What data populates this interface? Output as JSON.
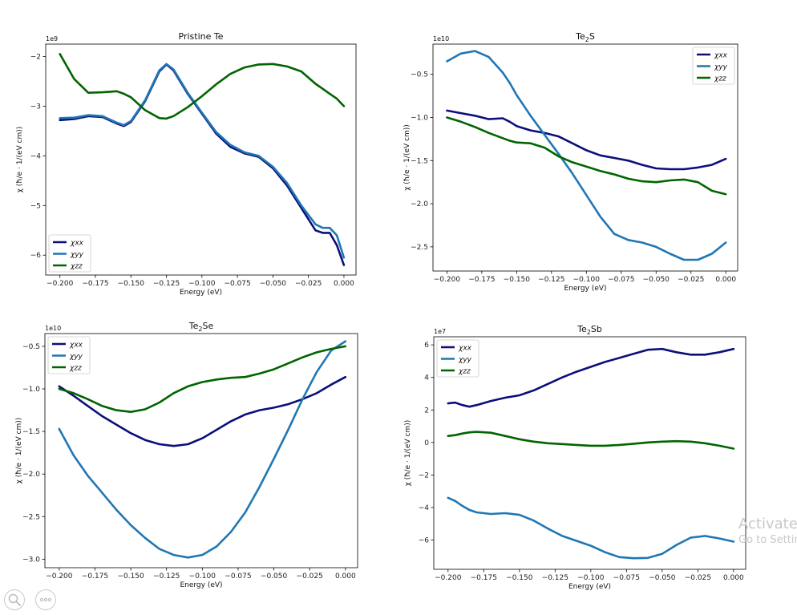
{
  "chart_data": [
    {
      "type": "line",
      "title": "Pristine Te",
      "title_sub": "",
      "title_suffix": "",
      "multiplier": "1e9",
      "xlabel": "Energy (eV)",
      "ylabel": "χ (ħ/e · 1/(eV cm))",
      "xlim": [
        -0.21,
        0.0085
      ],
      "ylim": [
        -6.4,
        -1.75
      ],
      "xticks": [
        -0.2,
        -0.175,
        -0.15,
        -0.125,
        -0.1,
        -0.075,
        -0.05,
        -0.025,
        0.0
      ],
      "xtick_labels": [
        "−0.200",
        "−0.175",
        "−0.150",
        "−0.125",
        "−0.100",
        "−0.075",
        "−0.050",
        "−0.025",
        "0.000"
      ],
      "yticks": [
        -6,
        -5,
        -4,
        -3,
        -2
      ],
      "ytick_labels": [
        "−6",
        "−5",
        "−4",
        "−3",
        "−2"
      ],
      "legend_loc": "lower-left",
      "x": [
        -0.2,
        -0.19,
        -0.18,
        -0.17,
        -0.16,
        -0.155,
        -0.15,
        -0.14,
        -0.13,
        -0.125,
        -0.12,
        -0.11,
        -0.1,
        -0.09,
        -0.08,
        -0.07,
        -0.06,
        -0.05,
        -0.04,
        -0.03,
        -0.02,
        -0.015,
        -0.01,
        -0.005,
        0.0
      ],
      "series": [
        {
          "name": "xx",
          "color": "#0b0f7a",
          "values": [
            -3.28,
            -3.26,
            -3.2,
            -3.22,
            -3.35,
            -3.4,
            -3.32,
            -2.9,
            -2.3,
            -2.16,
            -2.28,
            -2.75,
            -3.15,
            -3.55,
            -3.82,
            -3.95,
            -4.02,
            -4.25,
            -4.6,
            -5.05,
            -5.5,
            -5.55,
            -5.55,
            -5.8,
            -6.2
          ]
        },
        {
          "name": "yy",
          "color": "#1f77b4",
          "values": [
            -3.24,
            -3.23,
            -3.18,
            -3.2,
            -3.33,
            -3.38,
            -3.3,
            -2.88,
            -2.28,
            -2.15,
            -2.26,
            -2.73,
            -3.13,
            -3.52,
            -3.78,
            -3.93,
            -4.0,
            -4.22,
            -4.55,
            -5.0,
            -5.38,
            -5.45,
            -5.45,
            -5.6,
            -6.05
          ]
        },
        {
          "name": "zz",
          "color": "#006400",
          "values": [
            -1.95,
            -2.45,
            -2.73,
            -2.72,
            -2.7,
            -2.75,
            -2.82,
            -3.08,
            -3.24,
            -3.25,
            -3.2,
            -3.02,
            -2.8,
            -2.56,
            -2.35,
            -2.22,
            -2.16,
            -2.15,
            -2.2,
            -2.3,
            -2.55,
            -2.65,
            -2.75,
            -2.85,
            -3.0
          ]
        }
      ]
    },
    {
      "type": "line",
      "title": "Te",
      "title_sub": "2",
      "title_suffix": "S",
      "multiplier": "1e10",
      "xlabel": "Energy (eV)",
      "ylabel": "χ (ħ/e · 1/(eV cm))",
      "xlim": [
        -0.21,
        0.0085
      ],
      "ylim": [
        -2.78,
        -0.15
      ],
      "xticks": [
        -0.2,
        -0.175,
        -0.15,
        -0.125,
        -0.1,
        -0.075,
        -0.05,
        -0.025,
        0.0
      ],
      "xtick_labels": [
        "−0.200",
        "−0.175",
        "−0.150",
        "−0.125",
        "−0.100",
        "−0.075",
        "−0.050",
        "−0.025",
        "0.000"
      ],
      "yticks": [
        -2.5,
        -2.0,
        -1.5,
        -1.0,
        -0.5
      ],
      "ytick_labels": [
        "−2.5",
        "−2.0",
        "−1.5",
        "−1.0",
        "−0.5"
      ],
      "legend_loc": "top-right",
      "x": [
        -0.2,
        -0.19,
        -0.18,
        -0.17,
        -0.16,
        -0.155,
        -0.15,
        -0.14,
        -0.13,
        -0.12,
        -0.11,
        -0.1,
        -0.09,
        -0.08,
        -0.07,
        -0.06,
        -0.05,
        -0.04,
        -0.03,
        -0.02,
        -0.01,
        0.0
      ],
      "series": [
        {
          "name": "xx",
          "color": "#0b0f7a",
          "values": [
            -0.92,
            -0.95,
            -0.98,
            -1.02,
            -1.01,
            -1.05,
            -1.1,
            -1.15,
            -1.18,
            -1.22,
            -1.3,
            -1.38,
            -1.44,
            -1.47,
            -1.5,
            -1.55,
            -1.59,
            -1.6,
            -1.6,
            -1.58,
            -1.55,
            -1.48
          ]
        },
        {
          "name": "yy",
          "color": "#1f77b4",
          "values": [
            -0.35,
            -0.26,
            -0.23,
            -0.3,
            -0.48,
            -0.6,
            -0.74,
            -0.98,
            -1.2,
            -1.42,
            -1.65,
            -1.9,
            -2.15,
            -2.35,
            -2.42,
            -2.45,
            -2.5,
            -2.58,
            -2.65,
            -2.65,
            -2.58,
            -2.45
          ]
        },
        {
          "name": "zz",
          "color": "#006400",
          "values": [
            -1.0,
            -1.05,
            -1.11,
            -1.18,
            -1.24,
            -1.27,
            -1.29,
            -1.3,
            -1.35,
            -1.45,
            -1.52,
            -1.57,
            -1.62,
            -1.66,
            -1.71,
            -1.74,
            -1.75,
            -1.73,
            -1.72,
            -1.75,
            -1.85,
            -1.89
          ]
        }
      ]
    },
    {
      "type": "line",
      "title": "Te",
      "title_sub": "2",
      "title_suffix": "Se",
      "multiplier": "1e10",
      "xlabel": "Energy (eV)",
      "ylabel": "χ (ħ/e · 1/(eV cm))",
      "xlim": [
        -0.21,
        0.0085
      ],
      "ylim": [
        -3.1,
        -0.35
      ],
      "xticks": [
        -0.2,
        -0.175,
        -0.15,
        -0.125,
        -0.1,
        -0.075,
        -0.05,
        -0.025,
        0.0
      ],
      "xtick_labels": [
        "−0.200",
        "−0.175",
        "−0.150",
        "−0.125",
        "−0.100",
        "−0.075",
        "−0.050",
        "−0.025",
        "0.000"
      ],
      "yticks": [
        -3.0,
        -2.5,
        -2.0,
        -1.5,
        -1.0,
        -0.5
      ],
      "ytick_labels": [
        "−3.0",
        "−2.5",
        "−2.0",
        "−1.5",
        "−1.0",
        "−0.5"
      ],
      "legend_loc": "top-left",
      "x": [
        -0.2,
        -0.19,
        -0.18,
        -0.17,
        -0.16,
        -0.15,
        -0.14,
        -0.13,
        -0.12,
        -0.11,
        -0.1,
        -0.09,
        -0.08,
        -0.07,
        -0.06,
        -0.05,
        -0.04,
        -0.03,
        -0.02,
        -0.01,
        0.0
      ],
      "series": [
        {
          "name": "xx",
          "color": "#0b0f7a",
          "values": [
            -0.97,
            -1.08,
            -1.2,
            -1.32,
            -1.42,
            -1.52,
            -1.6,
            -1.65,
            -1.67,
            -1.65,
            -1.58,
            -1.48,
            -1.38,
            -1.3,
            -1.25,
            -1.22,
            -1.18,
            -1.12,
            -1.05,
            -0.95,
            -0.86
          ]
        },
        {
          "name": "yy",
          "color": "#1f77b4",
          "values": [
            -1.47,
            -1.78,
            -2.02,
            -2.22,
            -2.42,
            -2.6,
            -2.75,
            -2.88,
            -2.95,
            -2.98,
            -2.95,
            -2.85,
            -2.68,
            -2.45,
            -2.15,
            -1.82,
            -1.48,
            -1.12,
            -0.8,
            -0.55,
            -0.44
          ]
        },
        {
          "name": "zz",
          "color": "#006400",
          "values": [
            -1.0,
            -1.05,
            -1.12,
            -1.2,
            -1.25,
            -1.27,
            -1.24,
            -1.16,
            -1.05,
            -0.97,
            -0.92,
            -0.89,
            -0.87,
            -0.86,
            -0.82,
            -0.77,
            -0.7,
            -0.63,
            -0.57,
            -0.53,
            -0.5
          ]
        }
      ]
    },
    {
      "type": "line",
      "title": "Te",
      "title_sub": "2",
      "title_suffix": "Sb",
      "multiplier": "1e7",
      "xlabel": "Energy (eV)",
      "ylabel": "χ (ħ/e · 1/(eV cm))",
      "xlim": [
        -0.21,
        0.0085
      ],
      "ylim": [
        -7.8,
        6.5
      ],
      "xticks": [
        -0.2,
        -0.175,
        -0.15,
        -0.125,
        -0.1,
        -0.075,
        -0.05,
        -0.025,
        0.0
      ],
      "xtick_labels": [
        "−0.200",
        "−0.175",
        "−0.150",
        "−0.125",
        "−0.100",
        "−0.075",
        "−0.050",
        "−0.025",
        "0.000"
      ],
      "yticks": [
        -6,
        -4,
        -2,
        0,
        2,
        4,
        6
      ],
      "ytick_labels": [
        "−6",
        "−4",
        "−2",
        "0",
        "2",
        "4",
        "6"
      ],
      "legend_loc": "top-left",
      "x": [
        -0.2,
        -0.195,
        -0.19,
        -0.185,
        -0.18,
        -0.17,
        -0.16,
        -0.15,
        -0.14,
        -0.13,
        -0.12,
        -0.11,
        -0.1,
        -0.09,
        -0.08,
        -0.07,
        -0.06,
        -0.05,
        -0.04,
        -0.03,
        -0.02,
        -0.01,
        0.0
      ],
      "series": [
        {
          "name": "xx",
          "color": "#0b0f7a",
          "values": [
            2.4,
            2.45,
            2.3,
            2.2,
            2.3,
            2.55,
            2.75,
            2.9,
            3.2,
            3.6,
            4.0,
            4.35,
            4.65,
            4.95,
            5.2,
            5.45,
            5.7,
            5.75,
            5.55,
            5.4,
            5.4,
            5.55,
            5.75
          ]
        },
        {
          "name": "yy",
          "color": "#1f77b4",
          "values": [
            -3.4,
            -3.6,
            -3.9,
            -4.15,
            -4.3,
            -4.4,
            -4.35,
            -4.45,
            -4.8,
            -5.3,
            -5.75,
            -6.05,
            -6.35,
            -6.75,
            -7.05,
            -7.12,
            -7.1,
            -6.85,
            -6.3,
            -5.85,
            -5.75,
            -5.9,
            -6.1
          ]
        },
        {
          "name": "zz",
          "color": "#006400",
          "values": [
            0.4,
            0.45,
            0.55,
            0.62,
            0.65,
            0.6,
            0.4,
            0.2,
            0.05,
            -0.05,
            -0.1,
            -0.15,
            -0.2,
            -0.2,
            -0.15,
            -0.08,
            0.0,
            0.05,
            0.08,
            0.05,
            -0.05,
            -0.2,
            -0.38
          ]
        }
      ]
    }
  ],
  "legend_labels": [
    "χxx",
    "χyy",
    "χzz"
  ],
  "watermark": {
    "line1": "Activate",
    "line2": "Go to Settings"
  },
  "corner_icons": [
    "search-icon",
    "more-icon"
  ]
}
